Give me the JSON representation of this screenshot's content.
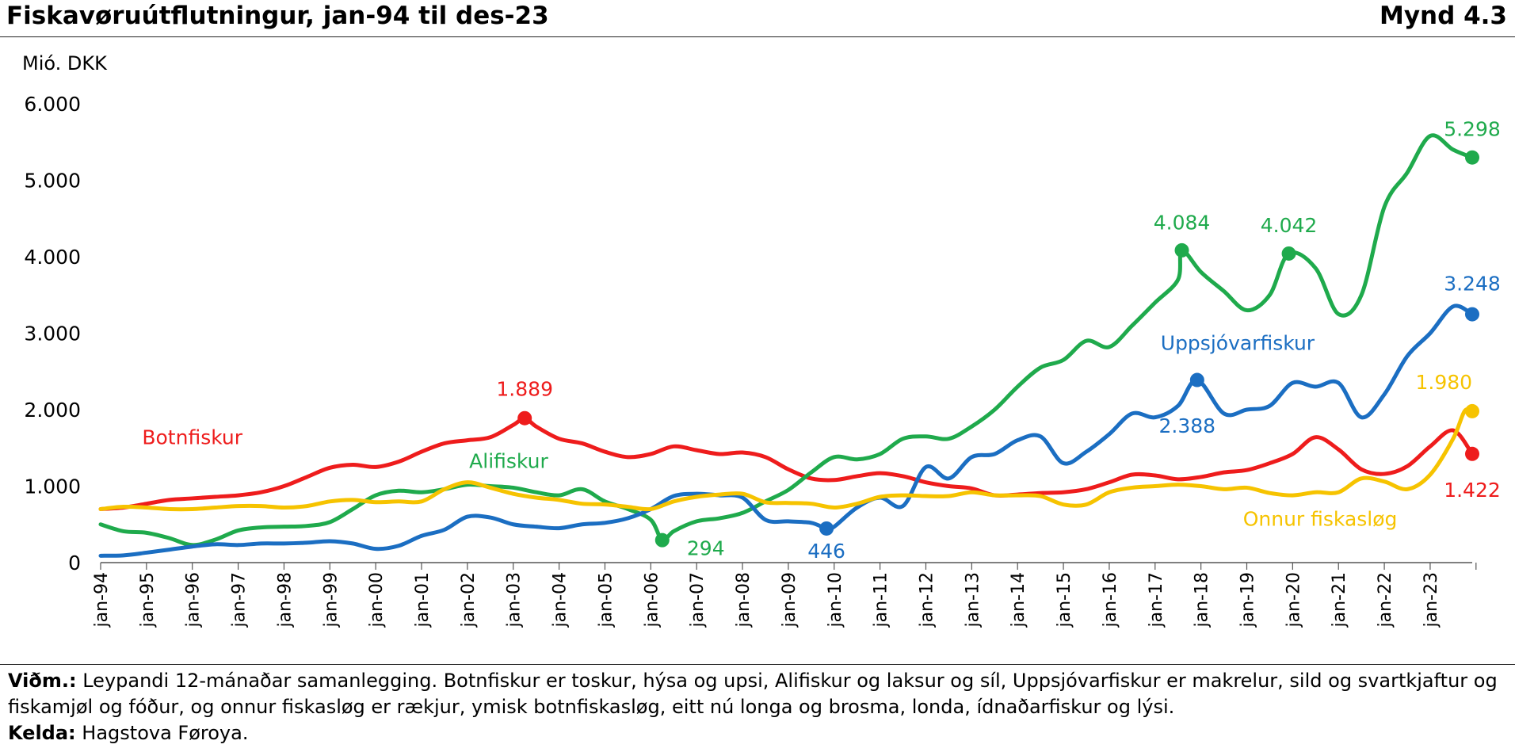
{
  "header": {
    "title": "Fiskavøruútflutningur, jan-94 til des-23",
    "figure_label": "Mynd 4.3"
  },
  "footer": {
    "note_label": "Viðm.:",
    "note_text": "Leypandi 12-mánaðar samanlegging. Botnfiskur er toskur, hýsa og upsi, Alifiskur og laksur og síl, Uppsjóvarfiskur er makrelur, sild og svartkjaftur og fiskamjøl og fóður, og onnur fiskasløg er rækjur, ymisk botnfiskasløg, eitt nú longa og brosma, londa, ídnaðarfiskur og lýsi.",
    "source_label": "Kelda:",
    "source_text": "Hagstova Føroya."
  },
  "chart_data": {
    "type": "line",
    "ylabel": "Mió. DKK",
    "ylim": [
      0,
      6000
    ],
    "yticks": [
      0,
      1000,
      2000,
      3000,
      4000,
      5000,
      6000
    ],
    "ytick_labels": [
      "0",
      "1.000",
      "2.000",
      "3.000",
      "4.000",
      "5.000",
      "6.000"
    ],
    "xlim": [
      1994.0,
      2023.917
    ],
    "xticks": [
      1994,
      1995,
      1996,
      1997,
      1998,
      1999,
      2000,
      2001,
      2002,
      2003,
      2004,
      2005,
      2006,
      2007,
      2008,
      2009,
      2010,
      2011,
      2012,
      2013,
      2014,
      2015,
      2016,
      2017,
      2018,
      2019,
      2020,
      2021,
      2022,
      2023
    ],
    "xtick_labels": [
      "jan-94",
      "jan-95",
      "jan-96",
      "jan-97",
      "jan-98",
      "jan-99",
      "jan-00",
      "jan-01",
      "jan-02",
      "jan-03",
      "jan-04",
      "jan-05",
      "jan-06",
      "jan-07",
      "jan-08",
      "jan-09",
      "jan-10",
      "jan-11",
      "jan-12",
      "jan-13",
      "jan-14",
      "jan-15",
      "jan-16",
      "jan-17",
      "jan-18",
      "jan-19",
      "jan-20",
      "jan-21",
      "jan-22",
      "jan-23"
    ],
    "grid": false,
    "series": [
      {
        "name": "Botnfiskur",
        "color": "#ee1c1c",
        "x": [
          1994.0,
          1994.5,
          1995.0,
          1995.5,
          1996.0,
          1996.5,
          1997.0,
          1997.5,
          1998.0,
          1998.5,
          1999.0,
          1999.5,
          2000.0,
          2000.5,
          2001.0,
          2001.5,
          2002.0,
          2002.5,
          2003.0,
          2003.25,
          2003.5,
          2004.0,
          2004.5,
          2005.0,
          2005.5,
          2006.0,
          2006.5,
          2007.0,
          2007.5,
          2008.0,
          2008.5,
          2009.0,
          2009.5,
          2010.0,
          2010.5,
          2011.0,
          2011.5,
          2012.0,
          2012.5,
          2013.0,
          2013.5,
          2014.0,
          2014.5,
          2015.0,
          2015.5,
          2016.0,
          2016.5,
          2017.0,
          2017.5,
          2018.0,
          2018.5,
          2019.0,
          2019.5,
          2020.0,
          2020.5,
          2021.0,
          2021.5,
          2022.0,
          2022.5,
          2023.0,
          2023.5,
          2023.917
        ],
        "values": [
          700,
          720,
          770,
          820,
          840,
          860,
          880,
          920,
          1000,
          1120,
          1240,
          1280,
          1250,
          1320,
          1450,
          1560,
          1600,
          1640,
          1800,
          1889,
          1780,
          1620,
          1560,
          1450,
          1380,
          1420,
          1520,
          1470,
          1420,
          1440,
          1380,
          1220,
          1100,
          1080,
          1130,
          1170,
          1130,
          1050,
          1000,
          970,
          880,
          890,
          910,
          920,
          960,
          1050,
          1150,
          1140,
          1090,
          1120,
          1180,
          1210,
          1300,
          1420,
          1640,
          1480,
          1220,
          1160,
          1260,
          1520,
          1730,
          1422
        ]
      },
      {
        "name": "Alifiskur",
        "color": "#1faa4c",
        "x": [
          1994.0,
          1994.5,
          1995.0,
          1995.5,
          1996.0,
          1996.5,
          1997.0,
          1997.5,
          1998.0,
          1998.5,
          1999.0,
          1999.5,
          2000.0,
          2000.5,
          2001.0,
          2001.5,
          2002.0,
          2002.5,
          2003.0,
          2003.5,
          2004.0,
          2004.5,
          2005.0,
          2005.5,
          2006.0,
          2006.25,
          2006.5,
          2007.0,
          2007.5,
          2008.0,
          2008.5,
          2009.0,
          2009.5,
          2010.0,
          2010.5,
          2011.0,
          2011.5,
          2012.0,
          2012.5,
          2013.0,
          2013.5,
          2014.0,
          2014.5,
          2015.0,
          2015.5,
          2016.0,
          2016.5,
          2017.0,
          2017.5,
          2017.583,
          2018.0,
          2018.5,
          2019.0,
          2019.5,
          2019.917,
          2020.5,
          2021.0,
          2021.5,
          2022.0,
          2022.5,
          2023.0,
          2023.5,
          2023.917
        ],
        "values": [
          500,
          410,
          390,
          320,
          230,
          300,
          420,
          460,
          470,
          480,
          530,
          700,
          880,
          940,
          920,
          960,
          1020,
          1000,
          980,
          920,
          880,
          960,
          800,
          700,
          560,
          294,
          410,
          540,
          580,
          650,
          800,
          950,
          1180,
          1380,
          1350,
          1420,
          1620,
          1650,
          1620,
          1780,
          2000,
          2300,
          2550,
          2650,
          2900,
          2820,
          3100,
          3400,
          3700,
          4084,
          3800,
          3550,
          3300,
          3500,
          4042,
          3850,
          3250,
          3500,
          4650,
          5100,
          5580,
          5400,
          5298
        ]
      },
      {
        "name": "Uppsjóvarfiskur",
        "color": "#1b6ec2",
        "x": [
          1994.0,
          1994.5,
          1995.0,
          1995.5,
          1996.0,
          1996.5,
          1997.0,
          1997.5,
          1998.0,
          1998.5,
          1999.0,
          1999.5,
          2000.0,
          2000.5,
          2001.0,
          2001.5,
          2002.0,
          2002.5,
          2003.0,
          2003.5,
          2004.0,
          2004.5,
          2005.0,
          2005.5,
          2006.0,
          2006.5,
          2007.0,
          2007.5,
          2008.0,
          2008.5,
          2009.0,
          2009.5,
          2009.833,
          2010.0,
          2010.5,
          2011.0,
          2011.5,
          2012.0,
          2012.5,
          2013.0,
          2013.5,
          2014.0,
          2014.5,
          2015.0,
          2015.5,
          2016.0,
          2016.5,
          2017.0,
          2017.5,
          2017.917,
          2018.5,
          2019.0,
          2019.5,
          2020.0,
          2020.5,
          2021.0,
          2021.5,
          2022.0,
          2022.5,
          2023.0,
          2023.5,
          2023.917
        ],
        "values": [
          90,
          95,
          130,
          170,
          210,
          240,
          230,
          250,
          250,
          260,
          280,
          250,
          180,
          220,
          350,
          430,
          600,
          590,
          500,
          470,
          450,
          500,
          520,
          580,
          700,
          870,
          900,
          880,
          850,
          560,
          540,
          520,
          446,
          470,
          720,
          850,
          740,
          1250,
          1100,
          1380,
          1420,
          1600,
          1650,
          1300,
          1450,
          1680,
          1950,
          1900,
          2050,
          2388,
          1950,
          2000,
          2050,
          2350,
          2300,
          2350,
          1900,
          2200,
          2700,
          3000,
          3350,
          3248
        ]
      },
      {
        "name": "Onnur fiskasløg",
        "color": "#f6c300",
        "x": [
          1994.0,
          1994.5,
          1995.0,
          1995.5,
          1996.0,
          1996.5,
          1997.0,
          1997.5,
          1998.0,
          1998.5,
          1999.0,
          1999.5,
          2000.0,
          2000.5,
          2001.0,
          2001.5,
          2002.0,
          2002.5,
          2003.0,
          2003.5,
          2004.0,
          2004.5,
          2005.0,
          2005.5,
          2006.0,
          2006.5,
          2007.0,
          2007.5,
          2008.0,
          2008.5,
          2009.0,
          2009.5,
          2010.0,
          2010.5,
          2011.0,
          2011.5,
          2012.0,
          2012.5,
          2013.0,
          2013.5,
          2014.0,
          2014.5,
          2015.0,
          2015.5,
          2016.0,
          2016.5,
          2017.0,
          2017.5,
          2018.0,
          2018.5,
          2019.0,
          2019.5,
          2020.0,
          2020.5,
          2021.0,
          2021.5,
          2022.0,
          2022.5,
          2023.0,
          2023.5,
          2023.75,
          2023.917
        ],
        "values": [
          700,
          730,
          720,
          700,
          700,
          720,
          740,
          740,
          720,
          740,
          800,
          820,
          790,
          800,
          800,
          960,
          1050,
          980,
          900,
          850,
          820,
          770,
          760,
          730,
          700,
          800,
          860,
          890,
          900,
          790,
          780,
          770,
          720,
          770,
          860,
          880,
          870,
          870,
          920,
          880,
          880,
          870,
          760,
          760,
          920,
          980,
          1000,
          1020,
          1000,
          960,
          980,
          910,
          880,
          920,
          920,
          1100,
          1060,
          960,
          1150,
          1620,
          1980,
          1980
        ]
      }
    ],
    "series_labels": [
      {
        "series": "Botnfiskur",
        "text": "Botnfiskur",
        "x": 1996.0,
        "y": 1550,
        "anchor": "middle"
      },
      {
        "series": "Alifiskur",
        "text": "Alifiskur",
        "x": 2002.9,
        "y": 1240,
        "anchor": "middle"
      },
      {
        "series": "Uppsjóvarfiskur",
        "text": "Uppsjóvarfiskur",
        "x": 2018.8,
        "y": 2780,
        "anchor": "middle"
      },
      {
        "series": "Onnur fiskasløg",
        "text": "Onnur fiskasløg",
        "x": 2020.6,
        "y": 480,
        "anchor": "middle"
      }
    ],
    "annotations": [
      {
        "series": "Botnfiskur",
        "x": 2003.25,
        "y": 1889,
        "text": "1.889",
        "label_x": 2003.25,
        "label_y": 2180,
        "anchor": "middle"
      },
      {
        "series": "Botnfiskur",
        "x": 2023.917,
        "y": 1422,
        "text": "1.422",
        "label_x": 2023.917,
        "label_y": 860,
        "anchor": "middle"
      },
      {
        "series": "Alifiskur",
        "x": 2006.25,
        "y": 294,
        "text": "294",
        "label_x": 2007.2,
        "label_y": 100,
        "anchor": "middle"
      },
      {
        "series": "Alifiskur",
        "x": 2017.583,
        "y": 4084,
        "text": "4.084",
        "label_x": 2017.583,
        "label_y": 4360,
        "anchor": "middle"
      },
      {
        "series": "Alifiskur",
        "x": 2019.917,
        "y": 4042,
        "text": "4.042",
        "label_x": 2019.917,
        "label_y": 4320,
        "anchor": "middle"
      },
      {
        "series": "Alifiskur",
        "x": 2023.917,
        "y": 5298,
        "text": "5.298",
        "label_x": 2023.917,
        "label_y": 5580,
        "anchor": "middle"
      },
      {
        "series": "Uppsjóvarfiskur",
        "x": 2009.833,
        "y": 446,
        "text": "446",
        "label_x": 2009.833,
        "label_y": 60,
        "anchor": "middle"
      },
      {
        "series": "Uppsjóvarfiskur",
        "x": 2017.917,
        "y": 2388,
        "text": "2.388",
        "label_x": 2017.7,
        "label_y": 1700,
        "anchor": "middle"
      },
      {
        "series": "Uppsjóvarfiskur",
        "x": 2023.917,
        "y": 3248,
        "text": "3.248",
        "label_x": 2023.917,
        "label_y": 3560,
        "anchor": "middle"
      },
      {
        "series": "Onnur fiskasløg",
        "x": 2023.917,
        "y": 1980,
        "text": "1.980",
        "label_x": 2023.3,
        "label_y": 2270,
        "anchor": "middle"
      }
    ]
  }
}
